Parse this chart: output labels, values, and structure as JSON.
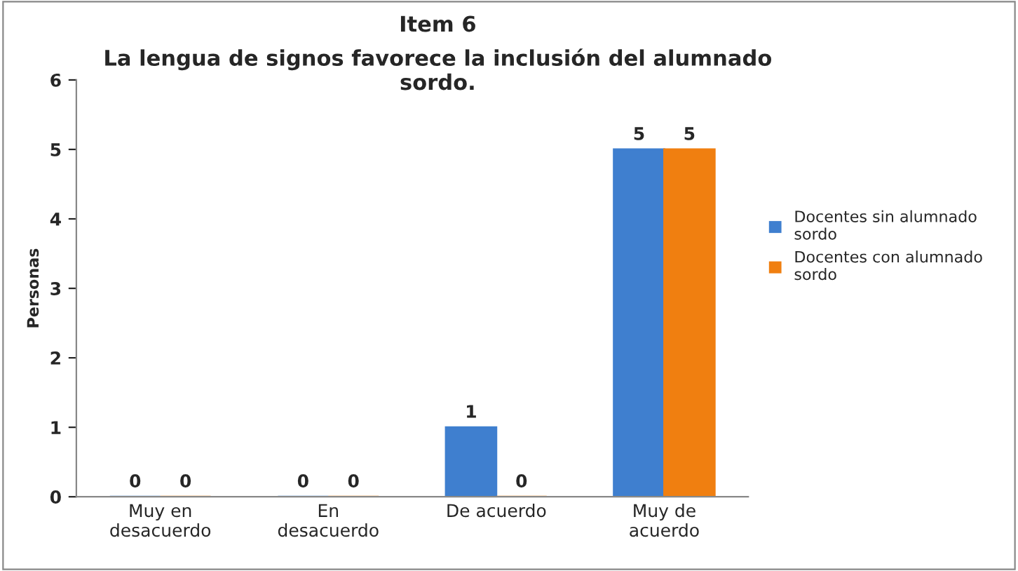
{
  "chart_data": {
    "type": "bar",
    "title": "Item 6",
    "subtitle": "La lengua de signos favorece la inclusión del alumnado\nsordo.",
    "ylabel": "Personas",
    "categories": [
      "Muy en\ndesacuerdo",
      "En\ndesacuerdo",
      "De acuerdo",
      "Muy de\nacuerdo"
    ],
    "series": [
      {
        "name": "Docentes sin alumnado\nsordo",
        "color": "#3f7fcf",
        "values": [
          0,
          0,
          1,
          5
        ]
      },
      {
        "name": "Docentes con alumnado\nsordo",
        "color": "#f07f10",
        "values": [
          0,
          0,
          0,
          5
        ]
      }
    ],
    "ylim": [
      0,
      6
    ],
    "yticks": [
      0,
      1,
      2,
      3,
      4,
      5,
      6
    ],
    "data_labels": true,
    "grid": false,
    "legend": "right"
  }
}
